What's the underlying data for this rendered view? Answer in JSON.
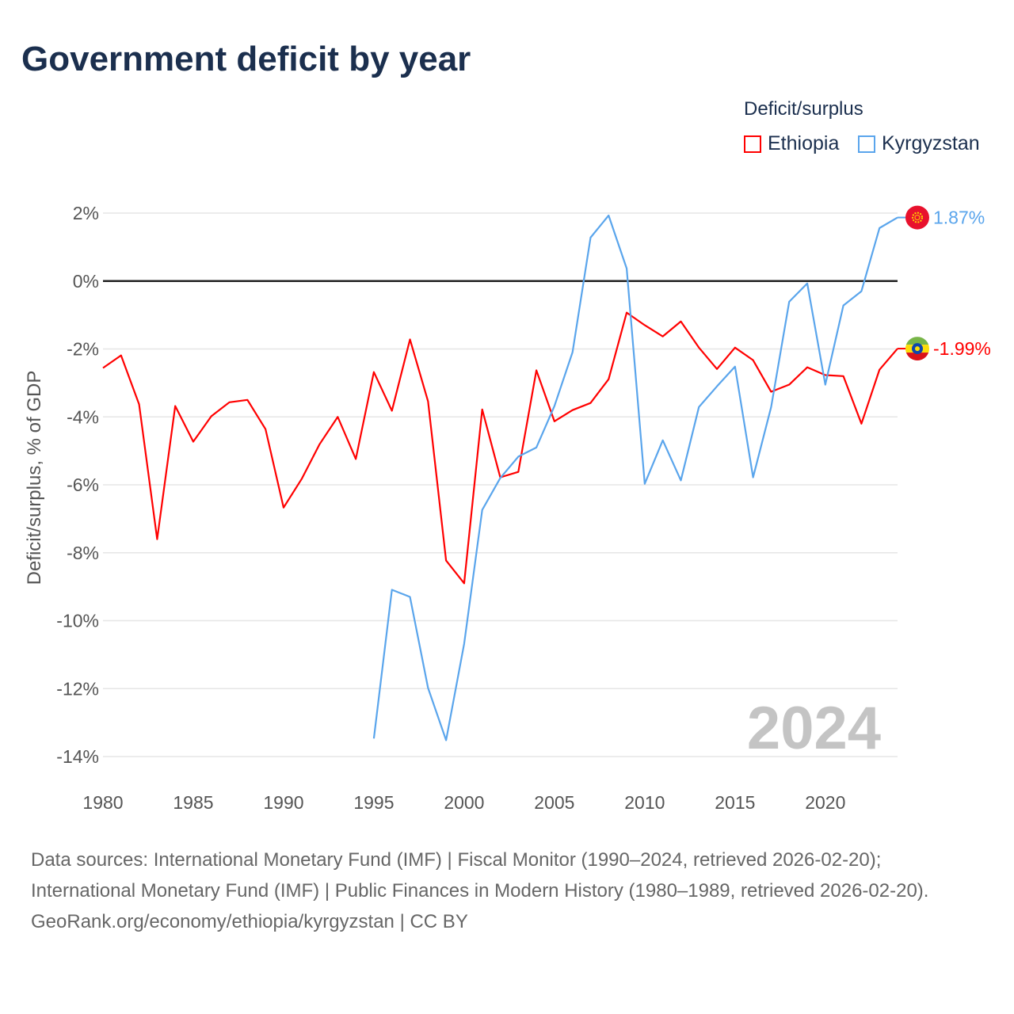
{
  "title": "Government deficit by year",
  "legend": {
    "title": "Deficit/surplus",
    "items": [
      "Ethiopia",
      "Kyrgyzstan"
    ]
  },
  "footer": {
    "sources": "Data sources: International Monetary Fund (IMF) | Fiscal Monitor (1990–2024, retrieved 2026-02-20); International Monetary Fund (IMF) | Public Finances in Modern History (1980–1989, retrieved 2026-02-20).",
    "credit": "GeoRank.org/economy/ethiopia/kyrgyzstan | CC BY"
  },
  "chart_data": {
    "type": "line",
    "title": "Government deficit by year",
    "xlabel": "",
    "ylabel": "Deficit/surplus, % of GDP",
    "xlim": [
      1980,
      2024
    ],
    "ylim": [
      -14,
      2
    ],
    "x_ticks": [
      1980,
      1985,
      1990,
      1995,
      2000,
      2005,
      2010,
      2015,
      2020
    ],
    "y_ticks": [
      2,
      0,
      -2,
      -4,
      -6,
      -8,
      -10,
      -12,
      -14
    ],
    "y_tick_labels": [
      "2%",
      "0%",
      "-2%",
      "-4%",
      "-6%",
      "-8%",
      "-10%",
      "-12%",
      "-14%"
    ],
    "watermark_year": "2024",
    "series": [
      {
        "name": "Ethiopia",
        "color": "#ff0000",
        "end_label": "-1.99%",
        "start_year": 1980,
        "values": [
          -2.56,
          -2.19,
          -3.63,
          -7.6,
          -3.68,
          -4.73,
          -3.98,
          -3.57,
          -3.5,
          -4.36,
          -6.67,
          -5.83,
          -4.8,
          -4.0,
          -5.24,
          -2.68,
          -3.82,
          -1.72,
          -3.54,
          -8.23,
          -8.9,
          -3.78,
          -5.78,
          -5.62,
          -2.63,
          -4.13,
          -3.8,
          -3.59,
          -2.89,
          -0.93,
          -1.3,
          -1.63,
          -1.19,
          -1.96,
          -2.59,
          -1.96,
          -2.33,
          -3.26,
          -3.05,
          -2.54,
          -2.77,
          -2.8,
          -4.2,
          -2.61,
          -1.99
        ]
      },
      {
        "name": "Kyrgyzstan",
        "color": "#5aa5ec",
        "end_label": "1.87%",
        "start_year": 1995,
        "values": [
          -13.47,
          -9.09,
          -9.3,
          -11.98,
          -13.52,
          -10.68,
          -6.74,
          -5.8,
          -5.17,
          -4.9,
          -3.68,
          -2.1,
          1.28,
          1.93,
          0.37,
          -5.97,
          -4.69,
          -5.87,
          -3.71,
          -3.1,
          -2.52,
          -5.78,
          -3.71,
          -0.61,
          -0.07,
          -3.05,
          -0.72,
          -0.3,
          1.56,
          1.87
        ]
      }
    ]
  }
}
